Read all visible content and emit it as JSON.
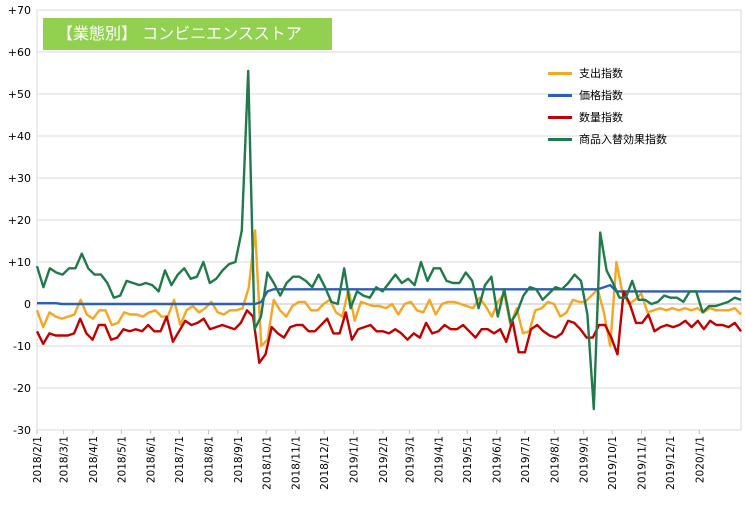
{
  "chart_data": {
    "type": "line",
    "title": "【業態別】 コンビニエンスストア",
    "ylim": [
      -30,
      70
    ],
    "yticks": [
      70,
      60,
      50,
      40,
      30,
      20,
      10,
      0,
      -10,
      -20,
      -30
    ],
    "ytick_labels": [
      "+70",
      "+60",
      "+50",
      "+40",
      "+30",
      "+20",
      "+10",
      "0",
      "-10",
      "-20",
      "-30"
    ],
    "x_start": "2018/2/1",
    "x_end": "2020/2/14",
    "xtick_labels": [
      "2018/2/1",
      "2018/3/1",
      "2018/4/1",
      "2018/5/1",
      "2018/6/1",
      "2018/7/1",
      "2018/8/1",
      "2018/9/1",
      "2018/10/1",
      "2018/11/1",
      "2018/12/1",
      "2019/1/1",
      "2019/2/1",
      "2019/3/1",
      "2019/4/1",
      "2019/5/1",
      "2019/6/1",
      "2019/7/1",
      "2019/8/1",
      "2019/9/1",
      "2019/10/1",
      "2019/11/1",
      "2019/12/1",
      "2020/1/1"
    ],
    "grid": true,
    "legend_position": "top-right",
    "series": [
      {
        "name": "支出指数",
        "color": "#f5a623",
        "values": [
          -1.5,
          -5.5,
          -2,
          -3,
          -3.5,
          -3,
          -2.5,
          1,
          -2.5,
          -3.5,
          -1.5,
          -1.5,
          -5,
          -4.5,
          -2,
          -2.5,
          -2.5,
          -3,
          -2,
          -1.5,
          -3,
          -3,
          1,
          -5,
          -1.5,
          -0.5,
          -2,
          -1,
          0.5,
          -2,
          -2.5,
          -1.5,
          -1.5,
          -1,
          4,
          17.5,
          -10,
          -8.5,
          1,
          -1.5,
          -3,
          -0.5,
          0.5,
          0.5,
          -1.5,
          -1.5,
          0,
          1,
          -2,
          -3,
          3.5,
          -4,
          0.5,
          0,
          -0.5,
          -0.5,
          -1,
          0,
          -2.5,
          0,
          0.5,
          -1.5,
          -2,
          1,
          -2.5,
          0,
          0.5,
          0.5,
          0,
          -0.5,
          -1,
          1.5,
          -0.5,
          -3,
          0.5,
          2.5,
          -5,
          -1,
          -7,
          -6.5,
          -1.5,
          -1,
          0.5,
          0,
          -3,
          -2,
          1,
          0.5,
          0.5,
          2,
          3.5,
          -2,
          -10,
          10,
          2.5,
          0,
          1,
          2.5,
          -2,
          -1.5,
          -1,
          -1.5,
          -1,
          -1.5,
          -1,
          -1.5,
          -1,
          -2,
          -1,
          -1.5,
          -1.5,
          -1.5,
          -1,
          -2.5
        ]
      },
      {
        "name": "価格指数",
        "color": "#2e5fb7",
        "values": [
          0.2,
          0.2,
          0.2,
          0.2,
          0,
          0,
          0,
          0,
          0,
          0,
          0,
          0,
          0,
          0,
          0,
          0,
          0,
          0,
          0,
          0,
          0,
          0,
          0,
          0,
          0,
          0,
          0,
          0,
          0,
          0,
          0,
          0,
          0,
          0,
          0,
          0,
          0.5,
          3,
          3.5,
          3.5,
          3.5,
          3.5,
          3.5,
          3.5,
          3.5,
          3.5,
          3.5,
          3.5,
          3.5,
          3.5,
          3.5,
          3.5,
          3.5,
          3.5,
          3.5,
          3.5,
          3.5,
          3.5,
          3.5,
          3.5,
          3.5,
          3.5,
          3.5,
          3.5,
          3.5,
          3.5,
          3.5,
          3.5,
          3.5,
          3.5,
          3.5,
          3.5,
          3.5,
          3.5,
          3.5,
          3.5,
          3.5,
          3.5,
          3.5,
          3.5,
          3.5,
          3.5,
          3.5,
          3.5,
          3.5,
          3.5,
          3.5,
          3.5,
          3.5,
          3.5,
          3.5,
          4,
          4.5,
          3,
          3,
          3,
          3,
          3,
          3,
          3,
          3,
          3,
          3,
          3,
          3,
          3,
          3,
          3,
          3,
          3,
          3,
          3,
          3,
          3
        ]
      },
      {
        "name": "数量指数",
        "color": "#c00000",
        "values": [
          -6.5,
          -9.5,
          -7,
          -7.5,
          -7.5,
          -7.5,
          -7,
          -3.5,
          -7,
          -8.5,
          -5,
          -5,
          -8.5,
          -8,
          -6,
          -6.5,
          -6,
          -6.5,
          -5,
          -6.5,
          -6.5,
          -3,
          -9,
          -6.5,
          -4,
          -5,
          -4.5,
          -3.5,
          -6,
          -5.5,
          -5,
          -5.5,
          -6,
          -4.5,
          -1.5,
          -3,
          -14,
          -12,
          -5.5,
          -7,
          -8,
          -5.5,
          -5,
          -5,
          -6.5,
          -6.5,
          -5,
          -3.5,
          -7,
          -7,
          -2,
          -8.5,
          -6,
          -5.5,
          -5,
          -6.5,
          -6.5,
          -7,
          -6,
          -7,
          -8.5,
          -7,
          -8,
          -4.5,
          -7,
          -6.5,
          -5,
          -6,
          -6,
          -5,
          -6.5,
          -8,
          -6,
          -6,
          -7,
          -6,
          -9,
          -4,
          -11.5,
          -11.5,
          -6,
          -5,
          -6.5,
          -7.5,
          -8,
          -7,
          -4,
          -4.5,
          -6,
          -8,
          -8,
          -5,
          -5,
          -8,
          -12,
          3,
          0,
          -4.5,
          -4.5,
          -2.5,
          -6.5,
          -5.5,
          -5,
          -5.5,
          -5,
          -4,
          -5.5,
          -4,
          -6,
          -4,
          -5,
          -5,
          -5.5,
          -4.5,
          -6.5
        ]
      },
      {
        "name": "商品入替効果指数",
        "color": "#217a4b",
        "values": [
          9,
          4,
          8.5,
          7.5,
          7,
          8.5,
          8.5,
          12,
          8.5,
          7,
          7,
          5,
          1.5,
          2,
          5.5,
          5,
          4.5,
          5,
          4.5,
          3,
          8,
          4.5,
          7,
          8.5,
          6,
          6.5,
          10,
          5,
          6,
          8,
          9.5,
          10,
          17.5,
          55.5,
          -6,
          -3,
          7.5,
          5,
          2,
          5,
          6.5,
          6.5,
          5.5,
          4,
          7,
          4,
          0.5,
          0,
          8.5,
          -1,
          3,
          2,
          1.5,
          4,
          3,
          5,
          7,
          5,
          6,
          4.5,
          10,
          5.5,
          8.5,
          8.5,
          5.5,
          5,
          5,
          7.5,
          5.5,
          -1,
          4.5,
          6.5,
          -3,
          3.5,
          -4.5,
          -2,
          2,
          4,
          3.5,
          1,
          2.5,
          4,
          3.5,
          5,
          7,
          5.5,
          -2.5,
          -25,
          17,
          8,
          5,
          1.5,
          1.5,
          5.5,
          1,
          1,
          0,
          0.5,
          2,
          1.5,
          1.5,
          0.5,
          3,
          3,
          -2,
          -0.5,
          -0.5,
          0,
          0.5,
          1.5,
          1
        ]
      }
    ]
  }
}
